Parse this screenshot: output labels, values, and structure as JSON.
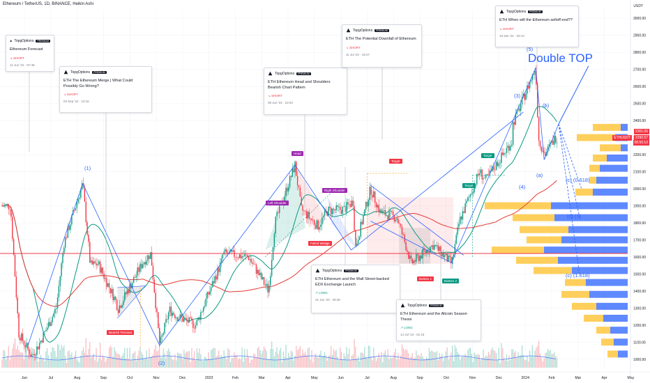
{
  "header": {
    "symbol_line": "Ethereum / TetherUS, 1D, BINANCE, Heikin Ashi",
    "currency": "USDT"
  },
  "price_axis": {
    "ticks": [
      "3000.00",
      "2900.00",
      "2800.00",
      "2700.00",
      "2600.00",
      "2500.00",
      "2400.00",
      "2300.00",
      "2200.00",
      "2100.00",
      "2000.00",
      "1900.00",
      "1800.00",
      "1700.00",
      "1600.00",
      "1500.00",
      "1400.00",
      "1300.00",
      "1200.00",
      "1100.00",
      "1000.00"
    ],
    "last_price": "2301.06",
    "symbol_tag": "ETHUSDT",
    "symbol_price": "2290.57",
    "countdown": "08:50:10"
  },
  "time_axis": {
    "labels": [
      "Jun",
      "Jul",
      "Aug",
      "Sep",
      "Oct",
      "Nov",
      "Dec",
      "2023",
      "Feb",
      "Mar",
      "Apr",
      "May",
      "Jun",
      "Jul",
      "Aug",
      "Sep",
      "Oct",
      "Nov",
      "Dec",
      "2024",
      "Feb",
      "Mar",
      "Apr",
      "May"
    ]
  },
  "ideas": [
    {
      "author": "TopgOptions",
      "badge": "PREMIUM",
      "title": "Ethereum Forecast",
      "direction": "SHORT",
      "date": "11 Jun '22 · 07:48"
    },
    {
      "author": "TopgOptions",
      "badge": "PREMIUM",
      "title": "ETH The Ethereum Merge | What Could Possibly Go Wrong?",
      "direction": "SHORT",
      "date": "03 Sep '22 · 12:16"
    },
    {
      "author": "TopgOptions",
      "badge": "PREMIUM",
      "title": "ETH Ethereum Head and Shoulders Bearish Chart Pattern",
      "direction": "SHORT",
      "date": "09 Jun '23 · 23:04"
    },
    {
      "author": "TopgOptions",
      "badge": "PREMIUM",
      "title": "ETH The Potential Downfall of Ethereum",
      "direction": "SHORT",
      "date": "11 Jul '23 · 19:27"
    },
    {
      "author": "TopgOptions",
      "badge": "PREMIUM",
      "title": "ETH When will the Ethereum selloff end??",
      "direction": "SHORT",
      "date": "18 Jan '24 · 03:14"
    },
    {
      "author": "TopgOptions",
      "badge": "PREMIUM",
      "title": "ETH Ethereum and the Wall Street-backed EDX Exchange Launch",
      "direction": "LONG",
      "date": "21 Jun '23 · 09:30"
    },
    {
      "author": "TopgOptions",
      "badge": "PREMIUM",
      "title": "ETH Ethereum and the Altcoin Season Thesis",
      "direction": "LONG",
      "date": "14 Jul '23 · 01:15"
    }
  ],
  "labels": {
    "head": "Head",
    "left_shoulder": "Left Shoulder",
    "right_shoulder": "Right Shoulder",
    "failed_wedge": "Failed Wedge",
    "bearish_pennant": "Bearish Pennant",
    "target": "Target",
    "bottom_1": "Bottom 1",
    "bottom_2": "Bottom 2",
    "double_top": "Double TOP"
  },
  "waves": {
    "w1": "(1)",
    "w2": "(2)",
    "w3": "(3)",
    "w4": "(4)",
    "w5": "(5)",
    "a": "(a)",
    "b": "(b)",
    "c0618": "(c) (0.618)",
    "c1": "(c) (1)",
    "c1618": "(c) (1.618)"
  },
  "colors": {
    "up": "#089981",
    "down": "#f23645",
    "trend": "#2962ff",
    "sma_fast": "#089981",
    "sma_slow": "#e53935",
    "support": "#f23645",
    "vp_up": "#ffc740",
    "vp_down": "#2962ff"
  },
  "chart_data": {
    "type": "candlestick",
    "series_note": "Heikin Ashi daily candles, approximate closes read from chart",
    "ylim": [
      950,
      3050
    ],
    "monthly_close": [
      {
        "month": "Jun 2022",
        "close": 1070
      },
      {
        "month": "Jul 2022",
        "close": 1680
      },
      {
        "month": "Aug 2022",
        "close": 1550
      },
      {
        "month": "Sep 2022",
        "close": 1330
      },
      {
        "month": "Oct 2022",
        "close": 1570
      },
      {
        "month": "Nov 2022",
        "close": 1290
      },
      {
        "month": "Dec 2022",
        "close": 1200
      },
      {
        "month": "Jan 2023",
        "close": 1580
      },
      {
        "month": "Feb 2023",
        "close": 1600
      },
      {
        "month": "Mar 2023",
        "close": 1800
      },
      {
        "month": "Apr 2023",
        "close": 1880
      },
      {
        "month": "May 2023",
        "close": 1870
      },
      {
        "month": "Jun 2023",
        "close": 1930
      },
      {
        "month": "Jul 2023",
        "close": 1860
      },
      {
        "month": "Aug 2023",
        "close": 1650
      },
      {
        "month": "Sep 2023",
        "close": 1670
      },
      {
        "month": "Oct 2023",
        "close": 1810
      },
      {
        "month": "Nov 2023",
        "close": 2050
      },
      {
        "month": "Dec 2023",
        "close": 2280
      },
      {
        "month": "Jan 2024",
        "close": 2290
      }
    ],
    "support_level": 1620,
    "key_highs": [
      {
        "label": "(1)",
        "date": "Aug 2022",
        "price": 2030
      },
      {
        "label": "Head",
        "date": "Apr 2023",
        "price": 2140
      },
      {
        "label": "(5)",
        "date": "Jan 2024",
        "price": 2710
      }
    ],
    "key_lows": [
      {
        "label": "(2)",
        "date": "Nov 2022",
        "price": 1080
      },
      {
        "label": "Bottom 1",
        "date": "Aug 2023",
        "price": 1560
      },
      {
        "label": "Bottom 2",
        "date": "Oct 2023",
        "price": 1560
      }
    ]
  }
}
